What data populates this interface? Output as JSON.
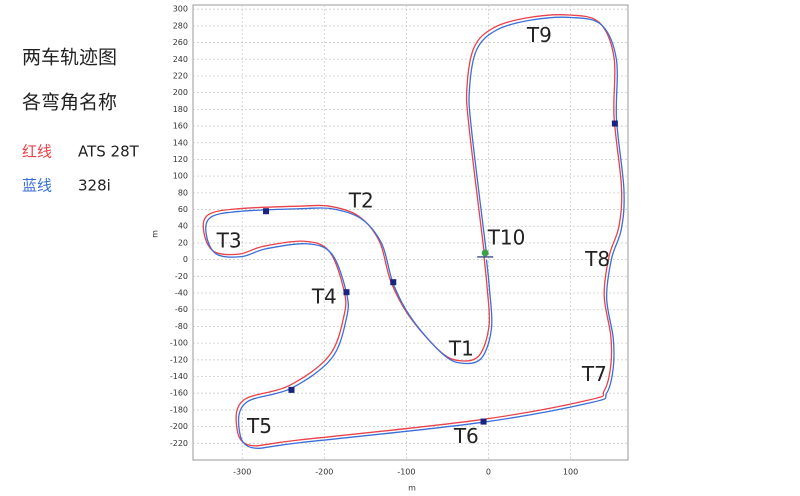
{
  "chart_data": {
    "type": "line",
    "title": "两车轨迹图",
    "subtitle": "各弯角名称",
    "xlabel": "m",
    "ylabel": "m",
    "xlim": [
      -360,
      170
    ],
    "ylim": [
      -240,
      305
    ],
    "xticks": [
      -300,
      -200,
      -100,
      0,
      100
    ],
    "yticks": [
      -220,
      -200,
      -180,
      -160,
      -140,
      -120,
      -100,
      -80,
      -60,
      -40,
      -20,
      0,
      20,
      40,
      60,
      80,
      100,
      120,
      140,
      160,
      180,
      200,
      220,
      240,
      260,
      280,
      300
    ],
    "grid": true,
    "series": [
      {
        "name": "ATS 28T",
        "legend_prefix": "红线",
        "color": "#e8424a",
        "x": [
          -5.4,
          -23.7,
          -26.2,
          -17.6,
          6.8,
          49.4,
          98,
          135,
          153,
          153,
          162,
          159,
          147,
          141,
          149,
          149,
          141,
          123,
          -11.5,
          -231,
          -292,
          -307,
          -298,
          -243,
          -194,
          -176,
          -176,
          -194,
          -225,
          -274,
          -304,
          -335,
          -347,
          -341,
          -304,
          -231,
          -194,
          -158,
          -133,
          -119,
          -97,
          -60,
          -36,
          -11.5,
          0.7,
          -1.8,
          -5.4
        ],
        "values": [
          10.1,
          159,
          206.6,
          254,
          278,
          290,
          293,
          284,
          242,
          171,
          87.5,
          40,
          4.2,
          -43,
          -91,
          -127,
          -157,
          -168,
          -192,
          -216,
          -222,
          -198,
          -168,
          -151,
          -115,
          -67,
          -37,
          10,
          22,
          16,
          6.6,
          10,
          34,
          54,
          61,
          64,
          64,
          52,
          22,
          -26,
          -67,
          -109,
          -121,
          -115,
          -79,
          -32,
          3
        ]
      },
      {
        "name": "328i",
        "legend_prefix": "蓝线",
        "color": "#3a6fd8",
        "x": [
          -2.4,
          -20.7,
          -23.2,
          -14.6,
          9.8,
          52.4,
          101,
          138,
          156,
          156,
          165,
          162,
          150,
          144,
          152,
          152,
          144,
          126,
          -8.5,
          -228,
          -289,
          -304,
          -295,
          -240,
          -191,
          -173,
          -173,
          -191,
          -222,
          -271,
          -301,
          -332,
          -344,
          -338,
          -301,
          -228,
          -191,
          -155,
          -130,
          -116,
          -94,
          -57,
          -33,
          -8.5,
          3.7,
          1.2,
          -2.4
        ],
        "values": [
          7.1,
          156,
          203.6,
          251,
          275,
          287,
          290,
          281,
          239,
          168,
          84.5,
          37,
          1.2,
          -46,
          -94,
          -130,
          -160,
          -171,
          -195,
          -219,
          -225,
          -201,
          -171,
          -154,
          -118,
          -70,
          -40,
          7,
          19,
          13,
          3.6,
          7,
          31,
          51,
          58,
          61,
          61,
          49,
          19,
          -29,
          -70,
          -112,
          -124,
          -118,
          -82,
          -35,
          0
        ]
      }
    ],
    "markers": {
      "color": "#1a237e",
      "x": [
        -271,
        -116,
        -173,
        -240,
        -6,
        154
      ],
      "values": [
        58,
        -27,
        -39,
        -156,
        -194,
        163
      ]
    },
    "start_marker": {
      "color": "#3aa04a",
      "x": -4,
      "value": 8
    },
    "annotations": [
      {
        "text": "T9",
        "x": 62,
        "y": 267
      },
      {
        "text": "T2",
        "x": -155,
        "y": 69
      },
      {
        "text": "T3",
        "x": -316,
        "y": 21
      },
      {
        "text": "T10",
        "x": 22,
        "y": 25
      },
      {
        "text": "T8",
        "x": 133,
        "y": -1
      },
      {
        "text": "T4",
        "x": -200,
        "y": -46
      },
      {
        "text": "T1",
        "x": -33,
        "y": -108
      },
      {
        "text": "T7",
        "x": 129,
        "y": -139
      },
      {
        "text": "T5",
        "x": -279,
        "y": -201
      },
      {
        "text": "T6",
        "x": -27,
        "y": -213
      }
    ]
  }
}
